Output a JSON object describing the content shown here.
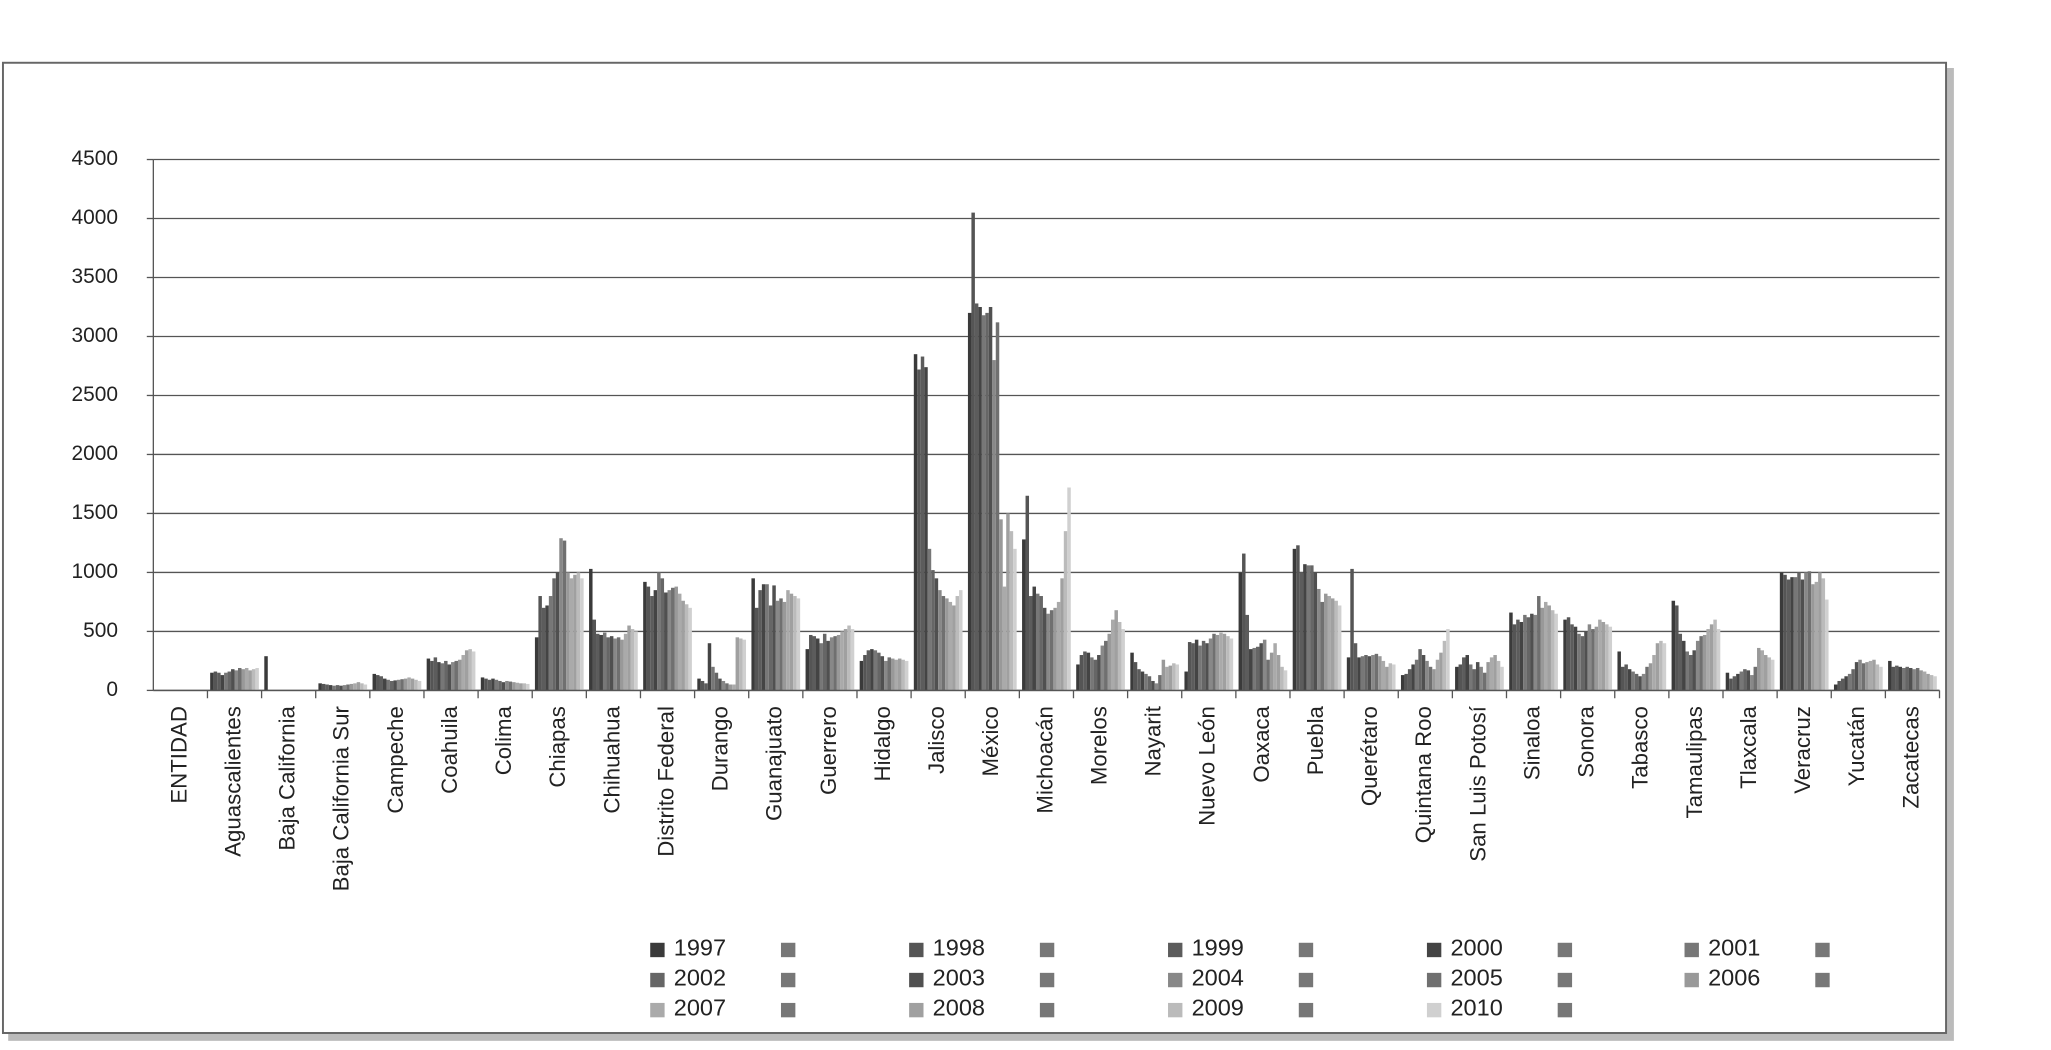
{
  "chart_data": {
    "type": "bar",
    "categories": [
      "ENTIDAD",
      "Aguascalientes",
      "Baja California",
      "Baja California Sur",
      "Campeche",
      "Coahuila",
      "Colima",
      "Chiapas",
      "Chihuahua",
      "Distrito Federal",
      "Durango",
      "Guanajuato",
      "Guerrero",
      "Hidalgo",
      "Jalisco",
      "México",
      "Michoacán",
      "Morelos",
      "Nayarit",
      "Nuevo León",
      "Oaxaca",
      "Puebla",
      "Querétaro",
      "Quintana Roo",
      "San Luis Potosí",
      "Sinaloa",
      "Sonora",
      "Tabasco",
      "Tamaulipas",
      "Tlaxcala",
      "Veracruz",
      "Yucatán",
      "Zacatecas"
    ],
    "ylim": [
      0,
      4500
    ],
    "yticks": [
      0,
      500,
      1000,
      1500,
      2000,
      2500,
      3000,
      3500,
      4000,
      4500
    ],
    "grid": true,
    "series": [
      {
        "name": "1997",
        "color": "#3a3a3a",
        "values": [
          null,
          150,
          290,
          60,
          140,
          270,
          110,
          450,
          1030,
          920,
          100,
          950,
          350,
          250,
          2850,
          3200,
          1280,
          220,
          320,
          160,
          1000,
          1200,
          280,
          130,
          200,
          660,
          600,
          330,
          760,
          150,
          1000,
          50,
          250
        ]
      },
      {
        "name": "1998",
        "color": "#555555",
        "values": [
          null,
          160,
          0,
          55,
          130,
          250,
          100,
          800,
          600,
          880,
          80,
          700,
          470,
          300,
          2720,
          4050,
          1650,
          300,
          240,
          410,
          1160,
          1230,
          1030,
          140,
          220,
          560,
          620,
          200,
          720,
          100,
          980,
          80,
          200
        ]
      },
      {
        "name": "1999",
        "color": "#5c5c5c",
        "values": [
          null,
          150,
          0,
          50,
          120,
          280,
          90,
          700,
          480,
          800,
          60,
          850,
          460,
          340,
          2830,
          3280,
          800,
          330,
          180,
          400,
          640,
          1000,
          400,
          180,
          280,
          600,
          560,
          220,
          480,
          120,
          940,
          100,
          210
        ]
      },
      {
        "name": "2000",
        "color": "#444444",
        "values": [
          null,
          130,
          0,
          45,
          100,
          240,
          100,
          720,
          470,
          850,
          400,
          900,
          440,
          350,
          2740,
          3250,
          880,
          320,
          160,
          430,
          350,
          1070,
          280,
          220,
          300,
          580,
          540,
          180,
          420,
          140,
          960,
          120,
          200
        ]
      },
      {
        "name": "2001",
        "color": "#777777",
        "values": [
          null,
          150,
          0,
          40,
          90,
          230,
          90,
          800,
          490,
          1000,
          200,
          900,
          400,
          340,
          1200,
          3180,
          820,
          280,
          140,
          380,
          360,
          1060,
          290,
          260,
          220,
          640,
          480,
          160,
          330,
          160,
          960,
          140,
          190
        ]
      },
      {
        "name": "2002",
        "color": "#666666",
        "values": [
          null,
          160,
          0,
          45,
          80,
          250,
          80,
          950,
          450,
          950,
          150,
          720,
          480,
          320,
          1020,
          3200,
          800,
          260,
          120,
          420,
          370,
          1060,
          300,
          350,
          180,
          620,
          460,
          140,
          300,
          180,
          1000,
          180,
          200
        ]
      },
      {
        "name": "2003",
        "color": "#505050",
        "values": [
          null,
          180,
          0,
          40,
          85,
          220,
          70,
          1000,
          460,
          830,
          100,
          890,
          420,
          290,
          950,
          3250,
          700,
          300,
          80,
          400,
          400,
          1000,
          290,
          300,
          240,
          650,
          500,
          120,
          340,
          170,
          940,
          240,
          190
        ]
      },
      {
        "name": "2004",
        "color": "#888888",
        "values": [
          null,
          170,
          0,
          45,
          90,
          240,
          80,
          1290,
          440,
          850,
          80,
          760,
          450,
          250,
          850,
          2800,
          650,
          380,
          60,
          440,
          430,
          860,
          300,
          250,
          200,
          640,
          560,
          140,
          420,
          130,
          1000,
          260,
          180
        ]
      },
      {
        "name": "2005",
        "color": "#707070",
        "values": [
          null,
          190,
          0,
          50,
          95,
          250,
          75,
          1270,
          450,
          870,
          60,
          780,
          460,
          280,
          800,
          3120,
          680,
          420,
          130,
          480,
          260,
          750,
          310,
          200,
          150,
          800,
          520,
          200,
          460,
          200,
          1010,
          230,
          190
        ]
      },
      {
        "name": "2006",
        "color": "#999999",
        "values": [
          null,
          180,
          0,
          55,
          100,
          260,
          70,
          1000,
          430,
          880,
          50,
          750,
          470,
          270,
          780,
          1450,
          700,
          480,
          260,
          470,
          320,
          820,
          290,
          180,
          240,
          700,
          540,
          230,
          470,
          360,
          900,
          240,
          170
        ]
      },
      {
        "name": "2007",
        "color": "#aaaaaa",
        "values": [
          null,
          190,
          0,
          60,
          110,
          300,
          65,
          950,
          480,
          820,
          50,
          850,
          500,
          260,
          750,
          880,
          750,
          600,
          200,
          490,
          400,
          800,
          250,
          260,
          280,
          750,
          600,
          300,
          520,
          340,
          920,
          250,
          160
        ]
      },
      {
        "name": "2008",
        "color": "#a0a0a0",
        "values": [
          null,
          170,
          0,
          70,
          100,
          340,
          60,
          980,
          550,
          760,
          450,
          820,
          520,
          270,
          720,
          1500,
          950,
          680,
          210,
          480,
          300,
          780,
          200,
          320,
          300,
          720,
          580,
          400,
          560,
          300,
          1000,
          260,
          140
        ]
      },
      {
        "name": "2009",
        "color": "#bbbbbb",
        "values": [
          null,
          180,
          0,
          60,
          90,
          350,
          60,
          1000,
          520,
          730,
          440,
          800,
          550,
          260,
          800,
          1350,
          1350,
          580,
          230,
          460,
          200,
          760,
          230,
          420,
          250,
          680,
          560,
          420,
          600,
          280,
          950,
          220,
          130
        ]
      },
      {
        "name": "2010",
        "color": "#d0d0d0",
        "values": [
          null,
          190,
          0,
          50,
          80,
          330,
          55,
          950,
          500,
          700,
          430,
          780,
          520,
          250,
          850,
          1200,
          1720,
          520,
          220,
          440,
          170,
          720,
          220,
          520,
          200,
          650,
          540,
          400,
          520,
          260,
          770,
          200,
          120
        ]
      }
    ]
  }
}
